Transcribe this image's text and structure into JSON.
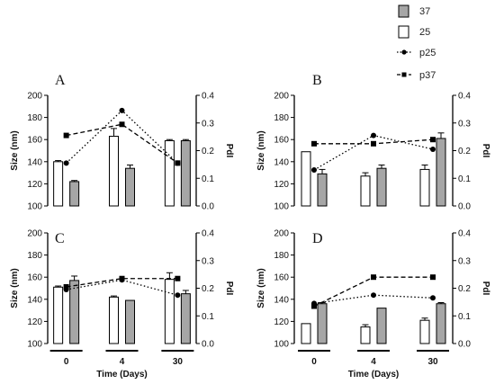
{
  "legend": [
    {
      "key": "s37",
      "label": "37",
      "kind": "bar",
      "fill": "#a6a6a6"
    },
    {
      "key": "s25",
      "label": "25",
      "kind": "bar",
      "fill": "#ffffff"
    },
    {
      "key": "p25",
      "label": "p25",
      "kind": "line",
      "marker": "circle",
      "dash": "dotted"
    },
    {
      "key": "p37",
      "label": "p37",
      "kind": "line",
      "marker": "square",
      "dash": "dashed"
    }
  ],
  "colors": {
    "bar37": "#a6a6a6",
    "bar25": "#ffffff",
    "stroke": "#000000"
  },
  "axes": {
    "y_left_label": "Size (nm)",
    "y_right_label": "PdI",
    "x_label": "Time (Days)",
    "categories": [
      "0",
      "4",
      "30"
    ],
    "y_left_range": [
      100,
      200
    ],
    "y_left_ticks": [
      "100",
      "120",
      "140",
      "160",
      "180",
      "200"
    ],
    "y_right_range": [
      0.0,
      0.4
    ],
    "y_right_ticks": [
      "0.0",
      "0.1",
      "0.2",
      "0.3",
      "0.4"
    ]
  },
  "chart_data": [
    {
      "type": "bar",
      "panel": "A",
      "categories": [
        "0",
        "4",
        "30"
      ],
      "series": [
        {
          "name": "25",
          "axis": "left",
          "values": [
            140,
            163,
            159
          ],
          "errors": [
            1,
            7,
            1
          ]
        },
        {
          "name": "37",
          "axis": "left",
          "values": [
            122,
            134,
            159
          ],
          "errors": [
            1,
            3,
            1
          ]
        },
        {
          "name": "p25",
          "axis": "right",
          "values": [
            0.155,
            0.345,
            0.155
          ]
        },
        {
          "name": "p37",
          "axis": "right",
          "values": [
            0.255,
            0.295,
            0.155
          ]
        }
      ],
      "ylabel": "Size (nm)",
      "y2label": "PdI",
      "ylim": [
        100,
        200
      ],
      "y2lim": [
        0.0,
        0.4
      ]
    },
    {
      "type": "bar",
      "panel": "B",
      "categories": [
        "0",
        "4",
        "30"
      ],
      "series": [
        {
          "name": "25",
          "axis": "left",
          "values": [
            149,
            127,
            133
          ],
          "errors": [
            0,
            3,
            4
          ]
        },
        {
          "name": "37",
          "axis": "left",
          "values": [
            129,
            134,
            161
          ],
          "errors": [
            4,
            3,
            5
          ]
        },
        {
          "name": "p25",
          "axis": "right",
          "values": [
            0.13,
            0.255,
            0.205
          ]
        },
        {
          "name": "p37",
          "axis": "right",
          "values": [
            0.225,
            0.225,
            0.24
          ]
        }
      ],
      "ylabel": "Size (nm)",
      "y2label": "PdI",
      "ylim": [
        100,
        200
      ],
      "y2lim": [
        0.0,
        0.4
      ]
    },
    {
      "type": "bar",
      "panel": "C",
      "categories": [
        "0",
        "4",
        "30"
      ],
      "series": [
        {
          "name": "25",
          "axis": "left",
          "values": [
            151,
            142,
            158
          ],
          "errors": [
            1,
            1,
            6
          ]
        },
        {
          "name": "37",
          "axis": "left",
          "values": [
            157,
            139,
            145
          ],
          "errors": [
            4,
            0,
            3
          ]
        },
        {
          "name": "p25",
          "axis": "right",
          "values": [
            0.195,
            0.23,
            0.175
          ]
        },
        {
          "name": "p37",
          "axis": "right",
          "values": [
            0.205,
            0.235,
            0.235
          ]
        }
      ],
      "ylabel": "Size (nm)",
      "y2label": "PdI",
      "ylim": [
        100,
        200
      ],
      "y2lim": [
        0.0,
        0.4
      ]
    },
    {
      "type": "bar",
      "panel": "D",
      "categories": [
        "0",
        "4",
        "30"
      ],
      "series": [
        {
          "name": "25",
          "axis": "left",
          "values": [
            118,
            115,
            121
          ],
          "errors": [
            0,
            2,
            2
          ]
        },
        {
          "name": "37",
          "axis": "left",
          "values": [
            136,
            132,
            136
          ],
          "errors": [
            1,
            0,
            1
          ]
        },
        {
          "name": "p25",
          "axis": "right",
          "values": [
            0.145,
            0.175,
            0.165
          ]
        },
        {
          "name": "p37",
          "axis": "right",
          "values": [
            0.135,
            0.24,
            0.24
          ]
        }
      ],
      "ylabel": "Size (nm)",
      "y2label": "PdI",
      "ylim": [
        100,
        200
      ],
      "y2lim": [
        0.0,
        0.4
      ]
    }
  ]
}
